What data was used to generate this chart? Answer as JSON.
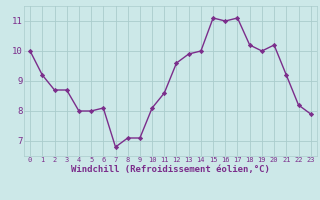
{
  "x": [
    0,
    1,
    2,
    3,
    4,
    5,
    6,
    7,
    8,
    9,
    10,
    11,
    12,
    13,
    14,
    15,
    16,
    17,
    18,
    19,
    20,
    21,
    22,
    23
  ],
  "y": [
    10.0,
    9.2,
    8.7,
    8.7,
    8.0,
    8.0,
    8.1,
    6.8,
    7.1,
    7.1,
    8.1,
    8.6,
    9.6,
    9.9,
    10.0,
    11.1,
    11.0,
    11.1,
    10.2,
    10.0,
    10.2,
    9.2,
    8.2,
    7.9
  ],
  "line_color": "#7b2d8b",
  "marker": "D",
  "marker_size": 2.2,
  "bg_color": "#cce8e8",
  "grid_color": "#aacccc",
  "xlabel": "Windchill (Refroidissement éolien,°C)",
  "ylim": [
    6.5,
    11.5
  ],
  "xlim": [
    -0.5,
    23.5
  ],
  "yticks": [
    7,
    8,
    9,
    10,
    11
  ],
  "xticks": [
    0,
    1,
    2,
    3,
    4,
    5,
    6,
    7,
    8,
    9,
    10,
    11,
    12,
    13,
    14,
    15,
    16,
    17,
    18,
    19,
    20,
    21,
    22,
    23
  ],
  "xlabel_color": "#7b2d8b",
  "tick_color": "#7b2d8b",
  "tick_fontsize_x": 5.0,
  "tick_fontsize_y": 6.5,
  "xlabel_fontsize": 6.5,
  "linewidth": 1.0
}
